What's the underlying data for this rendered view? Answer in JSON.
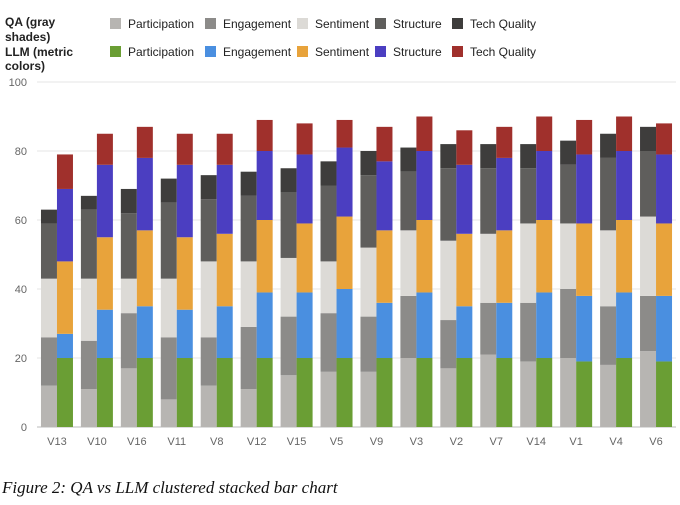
{
  "legend": {
    "qa_label": "QA (gray shades)",
    "llm_label": "LLM (metric colors)",
    "qa_label_lines": [
      "QA (gray",
      "shades)"
    ],
    "llm_label_lines": [
      "LLM (metric",
      "colors)"
    ]
  },
  "caption": "Figure 2: QA vs LLM clustered stacked bar chart",
  "chart_data": {
    "type": "bar",
    "stacked": true,
    "clustered": true,
    "categories": [
      "V13",
      "V10",
      "V16",
      "V11",
      "V8",
      "V12",
      "V15",
      "V5",
      "V9",
      "V3",
      "V2",
      "V7",
      "V14",
      "V1",
      "V4",
      "V6"
    ],
    "ylim": [
      0,
      100
    ],
    "yticks": [
      0,
      20,
      40,
      60,
      80,
      100
    ],
    "grid": true,
    "legend_position": "top",
    "metrics": [
      "Participation",
      "Engagement",
      "Sentiment",
      "Structure",
      "Tech Quality"
    ],
    "qa_colors": [
      "#b7b5b2",
      "#8c8b89",
      "#dcdad6",
      "#5f5e5c",
      "#3e3d3c"
    ],
    "llm_colors": [
      "#6a9e34",
      "#4a8fe0",
      "#e8a33b",
      "#4b3ec1",
      "#a0302c"
    ],
    "series": [
      {
        "group": "QA",
        "name": "Participation",
        "values": [
          12,
          11,
          17,
          8,
          12,
          11,
          15,
          16,
          16,
          20,
          17,
          21,
          19,
          20,
          18,
          22
        ]
      },
      {
        "group": "QA",
        "name": "Engagement",
        "values": [
          14,
          14,
          16,
          18,
          14,
          18,
          17,
          17,
          16,
          18,
          14,
          15,
          17,
          20,
          17,
          16
        ]
      },
      {
        "group": "QA",
        "name": "Sentiment",
        "values": [
          17,
          18,
          10,
          17,
          22,
          19,
          17,
          15,
          20,
          19,
          23,
          20,
          23,
          19,
          22,
          23
        ]
      },
      {
        "group": "QA",
        "name": "Structure",
        "values": [
          16,
          20,
          19,
          22,
          18,
          19,
          19,
          22,
          21,
          17,
          21,
          19,
          16,
          17,
          21,
          19
        ]
      },
      {
        "group": "QA",
        "name": "Tech Quality",
        "values": [
          4,
          4,
          7,
          7,
          7,
          7,
          7,
          7,
          7,
          7,
          7,
          7,
          7,
          7,
          7,
          7
        ]
      },
      {
        "group": "LLM",
        "name": "Participation",
        "values": [
          20,
          20,
          20,
          20,
          20,
          20,
          20,
          20,
          20,
          20,
          20,
          20,
          20,
          19,
          20,
          19
        ]
      },
      {
        "group": "LLM",
        "name": "Engagement",
        "values": [
          7,
          14,
          15,
          14,
          15,
          19,
          19,
          20,
          16,
          19,
          15,
          16,
          19,
          19,
          19,
          19
        ]
      },
      {
        "group": "LLM",
        "name": "Sentiment",
        "values": [
          21,
          21,
          22,
          21,
          21,
          21,
          20,
          21,
          21,
          21,
          21,
          21,
          21,
          21,
          21,
          21
        ]
      },
      {
        "group": "LLM",
        "name": "Structure",
        "values": [
          21,
          21,
          21,
          21,
          20,
          20,
          20,
          20,
          20,
          20,
          20,
          21,
          20,
          20,
          20,
          20
        ]
      },
      {
        "group": "LLM",
        "name": "Tech Quality",
        "values": [
          10,
          9,
          9,
          9,
          9,
          9,
          9,
          8,
          10,
          10,
          10,
          9,
          10,
          10,
          10,
          9
        ]
      }
    ]
  }
}
